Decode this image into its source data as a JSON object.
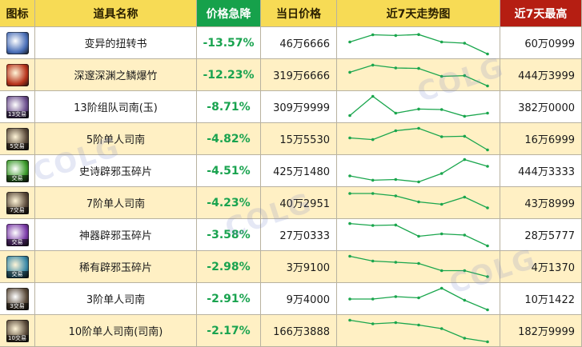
{
  "headers": {
    "icon": "图标",
    "name": "道具名称",
    "drop": "价格急降",
    "price": "当日价格",
    "trend": "近7天走势图",
    "max": "近7天最高"
  },
  "colors": {
    "header_bg": "#f7db55",
    "drop_header_bg": "#16a14b",
    "max_header_bg": "#b51e12",
    "drop_text": "#19a34f",
    "line": "#1aa64d",
    "row_alt": "#fff0c4"
  },
  "rows": [
    {
      "icon_name": "book-icon",
      "icon_color": "#4a6fb8",
      "icon_tag": "",
      "name": "变异的扭转书",
      "drop": "-13.57%",
      "price": "46万6666",
      "max": "60万0999"
    },
    {
      "icon_name": "firecracker-icon",
      "icon_color": "#b8341c",
      "icon_tag": "",
      "name": "深邃深渊之鳞爆竹",
      "drop": "-12.23%",
      "price": "319万6666",
      "max": "444万3999"
    },
    {
      "icon_name": "compass-icon",
      "icon_color": "#6a4c8c",
      "icon_tag": "13交易",
      "name": "13阶组队司南(玉)",
      "drop": "-8.71%",
      "price": "309万9999",
      "max": "382万0000"
    },
    {
      "icon_name": "compass-icon",
      "icon_color": "#5a4a3a",
      "icon_tag": "5交易",
      "name": "5阶单人司南",
      "drop": "-4.82%",
      "price": "15万5530",
      "max": "16万6999"
    },
    {
      "icon_name": "jade-fragment-icon",
      "icon_color": "#3a9a2a",
      "icon_tag": "交易",
      "name": "史诗辟邪玉碎片",
      "drop": "-4.51%",
      "price": "425万1480",
      "max": "444万3333"
    },
    {
      "icon_name": "compass-icon",
      "icon_color": "#5a4a3a",
      "icon_tag": "7交易",
      "name": "7阶单人司南",
      "drop": "-4.23%",
      "price": "40万2951",
      "max": "43万8999"
    },
    {
      "icon_name": "jade-fragment-icon",
      "icon_color": "#7a3aa8",
      "icon_tag": "交易",
      "name": "神器辟邪玉碎片",
      "drop": "-3.58%",
      "price": "27万0333",
      "max": "28万5777"
    },
    {
      "icon_name": "jade-fragment-icon",
      "icon_color": "#3a8aa8",
      "icon_tag": "交易",
      "name": "稀有辟邪玉碎片",
      "drop": "-2.98%",
      "price": "3万9100",
      "max": "4万1370"
    },
    {
      "icon_name": "compass-icon",
      "icon_color": "#5a4a3a",
      "icon_tag": "3交易",
      "name": "3阶单人司南",
      "drop": "-2.91%",
      "price": "9万4000",
      "max": "10万1422"
    },
    {
      "icon_name": "compass-icon",
      "icon_color": "#5a4a3a",
      "icon_tag": "10交易",
      "name": "10阶单人司南(司南)",
      "drop": "-2.17%",
      "price": "166万3888",
      "max": "182万9999"
    }
  ],
  "chart_data": {
    "type": "line",
    "title": "近7天走势图",
    "x": [
      1,
      2,
      3,
      4,
      5,
      6,
      7
    ],
    "ylim_per_row": "independent",
    "series": [
      {
        "values": [
          0.55,
          0.85,
          0.82,
          0.86,
          0.55,
          0.5,
          0.05
        ]
      },
      {
        "values": [
          0.62,
          0.92,
          0.8,
          0.78,
          0.45,
          0.48,
          0.05
        ]
      },
      {
        "values": [
          0.15,
          0.95,
          0.25,
          0.42,
          0.4,
          0.12,
          0.25
        ]
      },
      {
        "values": [
          0.55,
          0.48,
          0.85,
          0.95,
          0.6,
          0.62,
          0.05
        ]
      },
      {
        "values": [
          0.3,
          0.12,
          0.15,
          0.05,
          0.4,
          0.98,
          0.7
        ]
      },
      {
        "values": [
          0.9,
          0.9,
          0.8,
          0.55,
          0.45,
          0.75,
          0.3
        ]
      },
      {
        "values": [
          0.98,
          0.9,
          0.92,
          0.45,
          0.55,
          0.5,
          0.05
        ]
      },
      {
        "values": [
          0.95,
          0.75,
          0.7,
          0.65,
          0.35,
          0.35,
          0.1
        ]
      },
      {
        "values": [
          0.5,
          0.5,
          0.6,
          0.55,
          0.95,
          0.45,
          0.05
        ]
      },
      {
        "values": [
          0.95,
          0.8,
          0.85,
          0.75,
          0.6,
          0.2,
          0.05
        ]
      }
    ]
  }
}
